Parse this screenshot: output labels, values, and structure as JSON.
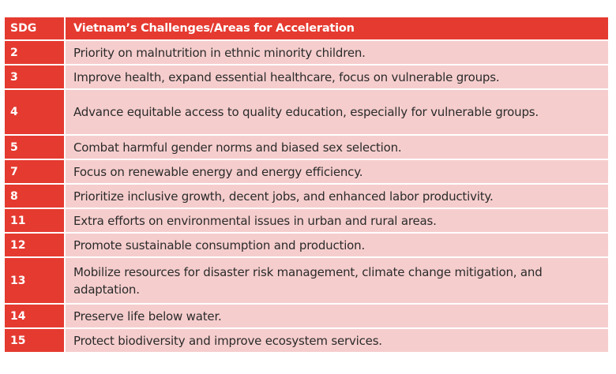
{
  "table": {
    "header": {
      "sdg": "SDG",
      "challenge": "Vietnam’s Challenges/Areas for Acceleration"
    },
    "rows": [
      {
        "sdg": "2",
        "text": "Priority on malnutrition in ethnic minority children."
      },
      {
        "sdg": "3",
        "text": "Improve health, expand essential healthcare, focus on vulnerable groups."
      },
      {
        "sdg": "4",
        "text": "Advance equitable access to quality education, especially for vulnerable groups."
      },
      {
        "sdg": "5",
        "text": "Combat harmful gender norms and biased sex selection."
      },
      {
        "sdg": "7",
        "text": "Focus on renewable energy and energy efficiency."
      },
      {
        "sdg": "8",
        "text": "Prioritize inclusive growth, decent jobs, and enhanced labor productivity."
      },
      {
        "sdg": "11",
        "text": "Extra efforts on environmental issues in urban and rural areas."
      },
      {
        "sdg": "12",
        "text": "Promote sustainable consumption and production."
      },
      {
        "sdg": "13",
        "text": "Mobilize resources for disaster risk management, climate change mitigation, and adaptation."
      },
      {
        "sdg": "14",
        "text": "Preserve life below water."
      },
      {
        "sdg": "15",
        "text": "Protect biodiversity and improve ecosystem services."
      }
    ]
  },
  "colors": {
    "header_bg": "#e53a30",
    "sdg_cell_bg": "#e53a30",
    "text_cell_bg": "#f6cdcd",
    "text_color": "#2b2b2b"
  }
}
